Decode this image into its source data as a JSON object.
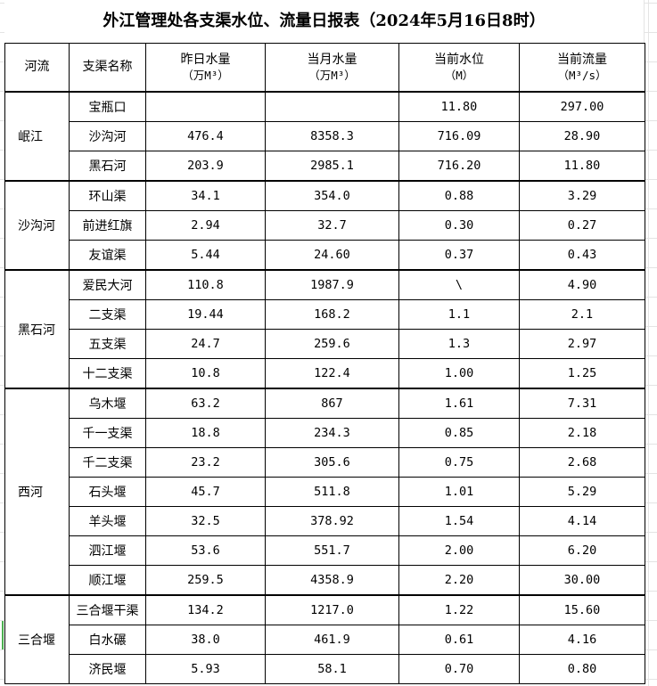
{
  "title": "外江管理处各支渠水位、流量日报表（2024年5月16日8时）",
  "headers": {
    "river": "河流",
    "canal": "支渠名称",
    "yesterday": "昨日水量",
    "yesterday_unit": "（万M³）",
    "month": "当月水量",
    "month_unit": "（万M³）",
    "level": "当前水位",
    "level_unit": "（M）",
    "flow": "当前流量",
    "flow_unit": "（M³/s）"
  },
  "groups": [
    {
      "river": "岷江",
      "rows": [
        {
          "canal": "宝瓶口",
          "yesterday": "",
          "month": "",
          "level": "11.80",
          "flow": "297.00"
        },
        {
          "canal": "沙沟河",
          "yesterday": "476.4",
          "month": "8358.3",
          "level": "716.09",
          "flow": "28.90"
        },
        {
          "canal": "黑石河",
          "yesterday": "203.9",
          "month": "2985.1",
          "level": "716.20",
          "flow": "11.80"
        }
      ]
    },
    {
      "river": "沙沟河",
      "rows": [
        {
          "canal": "环山渠",
          "yesterday": "34.1",
          "month": "354.0",
          "level": "0.88",
          "flow": "3.29"
        },
        {
          "canal": "前进红旗",
          "yesterday": "2.94",
          "month": "32.7",
          "level": "0.30",
          "flow": "0.27"
        },
        {
          "canal": "友谊渠",
          "yesterday": "5.44",
          "month": "24.60",
          "level": "0.37",
          "flow": "0.43"
        }
      ]
    },
    {
      "river": "黑石河",
      "rows": [
        {
          "canal": "爱民大河",
          "yesterday": "110.8",
          "month": "1987.9",
          "level": "\\",
          "flow": "4.90"
        },
        {
          "canal": "二支渠",
          "yesterday": "19.44",
          "month": "168.2",
          "level": "1.1",
          "flow": "2.1"
        },
        {
          "canal": "五支渠",
          "yesterday": "24.7",
          "month": "259.6",
          "level": "1.3",
          "flow": "2.97"
        },
        {
          "canal": "十二支渠",
          "yesterday": "10.8",
          "month": "122.4",
          "level": "1.00",
          "flow": "1.25"
        }
      ]
    },
    {
      "river": "西河",
      "rows": [
        {
          "canal": "乌木堰",
          "yesterday": "63.2",
          "month": "867",
          "level": "1.61",
          "flow": "7.31"
        },
        {
          "canal": "千一支渠",
          "yesterday": "18.8",
          "month": "234.3",
          "level": "0.85",
          "flow": "2.18"
        },
        {
          "canal": "千二支渠",
          "yesterday": "23.2",
          "month": "305.6",
          "level": "0.75",
          "flow": "2.68"
        },
        {
          "canal": "石头堰",
          "yesterday": "45.7",
          "month": "511.8",
          "level": "1.01",
          "flow": "5.29"
        },
        {
          "canal": "羊头堰",
          "yesterday": "32.5",
          "month": "378.92",
          "level": "1.54",
          "flow": "4.14"
        },
        {
          "canal": "泗江堰",
          "yesterday": "53.6",
          "month": "551.7",
          "level": "2.00",
          "flow": "6.20"
        },
        {
          "canal": "顺江堰",
          "yesterday": "259.5",
          "month": "4358.9",
          "level": "2.20",
          "flow": "30.00"
        }
      ]
    },
    {
      "river": "三合堰",
      "rows": [
        {
          "canal": "三合堰干渠",
          "yesterday": "134.2",
          "month": "1217.0",
          "level": "1.22",
          "flow": "15.60"
        },
        {
          "canal": "白水碾",
          "yesterday": "38.0",
          "month": "461.9",
          "level": "0.61",
          "flow": "4.16"
        },
        {
          "canal": "济民堰",
          "yesterday": "5.93",
          "month": "58.1",
          "level": "0.70",
          "flow": "0.80"
        }
      ]
    }
  ]
}
